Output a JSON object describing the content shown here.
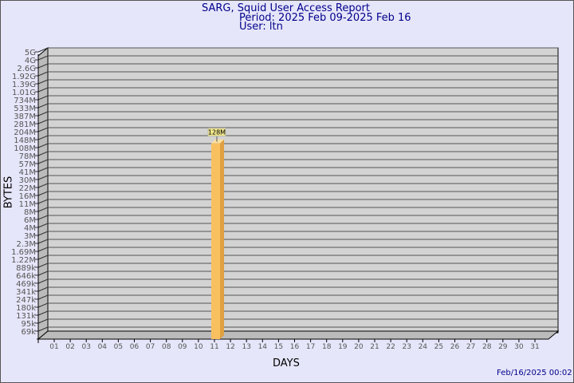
{
  "header": {
    "title": "SARG, Squid User Access Report",
    "period": "Period: 2025 Feb 09-2025 Feb 16",
    "user": "User: ltn"
  },
  "footer": {
    "timestamp": "Feb/16/2025 00:02"
  },
  "chart_data": {
    "type": "bar",
    "xlabel": "DAYS",
    "ylabel": "BYTES",
    "y_scale": "log",
    "y_tick_labels": [
      "5G",
      "4G",
      "2.6G",
      "1.92G",
      "1.39G",
      "1.01G",
      "734M",
      "533M",
      "387M",
      "281M",
      "204M",
      "148M",
      "108M",
      "78M",
      "57M",
      "41M",
      "30M",
      "22M",
      "16M",
      "11M",
      "8M",
      "6M",
      "4M",
      "3M",
      "2.3M",
      "1.69M",
      "1.22M",
      "889k",
      "646k",
      "469k",
      "341k",
      "247k",
      "180k",
      "131k",
      "95k",
      "69k"
    ],
    "categories": [
      "01",
      "02",
      "03",
      "04",
      "05",
      "06",
      "07",
      "08",
      "09",
      "10",
      "11",
      "12",
      "13",
      "14",
      "15",
      "16",
      "17",
      "18",
      "19",
      "20",
      "21",
      "22",
      "23",
      "24",
      "25",
      "26",
      "27",
      "28",
      "29",
      "30",
      "31"
    ],
    "values": [
      null,
      null,
      null,
      null,
      null,
      null,
      null,
      null,
      null,
      null,
      128000000,
      null,
      null,
      null,
      null,
      null,
      null,
      null,
      null,
      null,
      null,
      null,
      null,
      null,
      null,
      null,
      null,
      null,
      null,
      null,
      null
    ],
    "data_labels": {
      "11": "128M"
    },
    "grid": true,
    "colors": {
      "bar": "#f9c060",
      "bar_side": "#e0a040",
      "bar_top": "#fbe0a0",
      "plot_bg": "#d3d3d3",
      "label_bg": "#f0e68c"
    }
  }
}
